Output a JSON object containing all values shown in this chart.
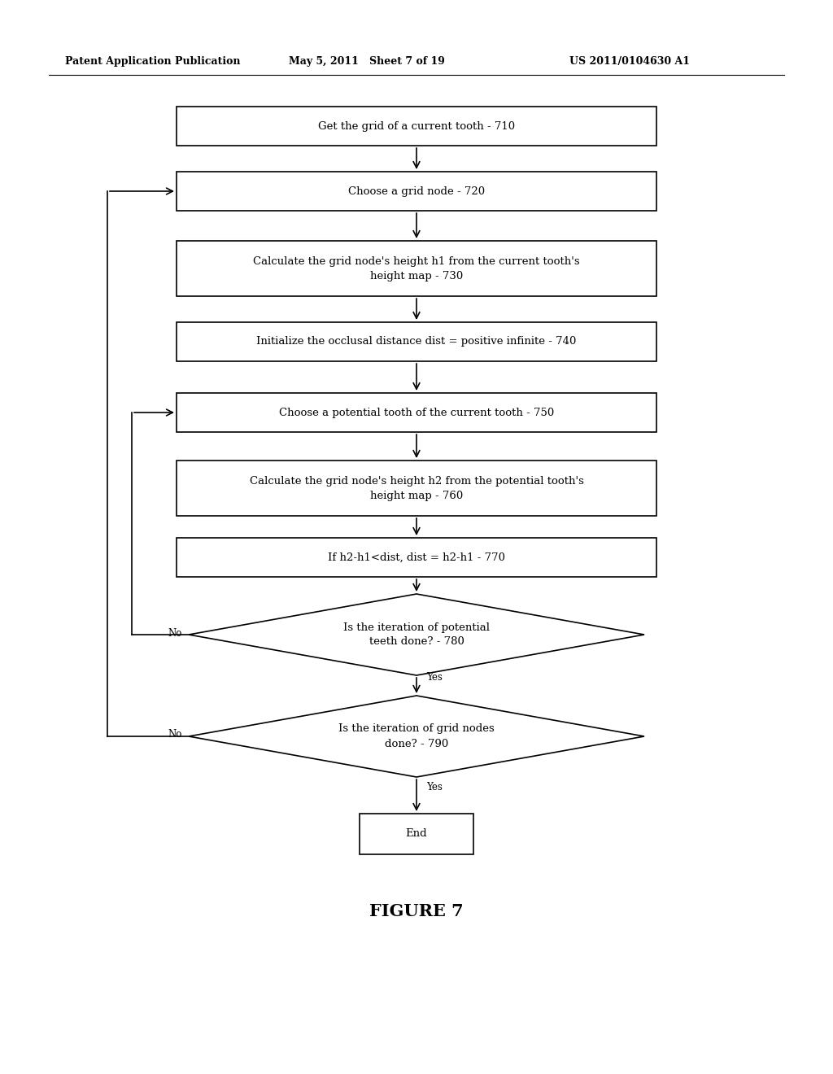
{
  "title": "FIGURE 7",
  "header_left": "Patent Application Publication",
  "header_mid": "May 5, 2011   Sheet 7 of 19",
  "header_right": "US 2011/0104630 A1",
  "bg_color": "#ffffff",
  "line_color": "#000000",
  "text_color": "#000000",
  "font_size": 9.5,
  "title_font_size": 15
}
